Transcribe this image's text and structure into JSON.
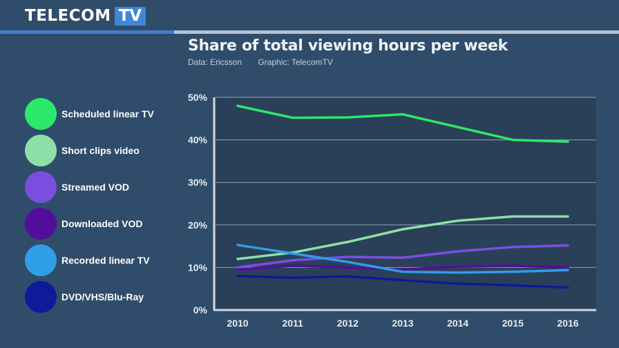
{
  "brand": {
    "name": "TELECOM",
    "suffix": "TV"
  },
  "chart_data": {
    "type": "line",
    "title": "Share of total viewing hours per week",
    "source": "Data: Ericsson",
    "credit": "Graphic: TelecomTV",
    "xlabel": "",
    "ylabel": "",
    "x": [
      2010,
      2011,
      2012,
      2013,
      2014,
      2015,
      2016
    ],
    "x_labels": [
      "2010",
      "2011",
      "2012",
      "2013",
      "2014",
      "2015",
      "2016"
    ],
    "ylim": [
      0,
      50
    ],
    "yticks": [
      0,
      10,
      20,
      30,
      40,
      50
    ],
    "ytick_labels": [
      "0%",
      "10%",
      "20%",
      "30%",
      "40%",
      "50%"
    ],
    "grid": true,
    "legend_position": "left",
    "series": [
      {
        "name": "Scheduled linear TV",
        "color": "#2ee86a",
        "values": [
          48,
          45.2,
          45.3,
          46,
          43,
          40,
          39.6
        ]
      },
      {
        "name": "Short clips video",
        "color": "#8ee0a8",
        "values": [
          12,
          13.5,
          16,
          19,
          21,
          22,
          22
        ]
      },
      {
        "name": "Streamed VOD",
        "color": "#7a4fe0",
        "values": [
          10,
          11.7,
          12.5,
          12.3,
          13.8,
          14.8,
          15.2
        ]
      },
      {
        "name": "Downloaded VOD",
        "color": "#520e9a",
        "values": [
          9.5,
          10.4,
          10,
          9.5,
          10.2,
          10.4,
          10
        ]
      },
      {
        "name": "Recorded linear TV",
        "color": "#2f9ee8",
        "values": [
          15.3,
          13.3,
          11.3,
          9,
          8.8,
          9,
          9.4
        ]
      },
      {
        "name": "DVD/VHS/Blu-Ray",
        "color": "#0d1a9a",
        "values": [
          8,
          7.6,
          7.9,
          7,
          6.2,
          5.8,
          5.3
        ]
      }
    ]
  }
}
